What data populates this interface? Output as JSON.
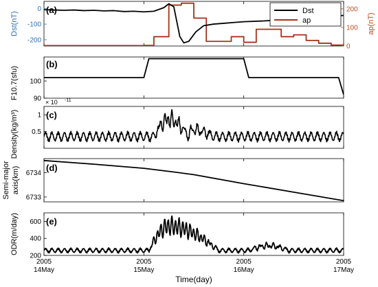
{
  "chart_data": [
    {
      "id": "a",
      "type": "line",
      "panel_label": "(a)",
      "xlim": [
        0,
        3
      ],
      "left_axis": {
        "label": "Dst(nT)",
        "color": "#2f6fb3",
        "ylim": [
          -240,
          45
        ],
        "ticks": [
          0,
          -100,
          -200
        ],
        "tick_labels": [
          "0",
          "-100",
          "-200"
        ]
      },
      "right_axis": {
        "label": "ap(nT)",
        "color": "#c04a1f",
        "ylim": [
          0,
          240
        ],
        "ticks": [
          0,
          100,
          200
        ],
        "tick_labels": [
          "0",
          "100",
          "200"
        ]
      },
      "legend": {
        "position": "top-right",
        "entries": [
          {
            "label": "Dst",
            "color": "#000000"
          },
          {
            "label": "ap",
            "color": "#a3321a"
          }
        ]
      },
      "series": [
        {
          "name": "Dst",
          "axis": "left",
          "color": "#000000",
          "x": [
            0,
            0.1,
            0.2,
            0.3,
            0.4,
            0.5,
            0.6,
            0.7,
            0.8,
            0.9,
            1.0,
            1.1,
            1.2,
            1.25,
            1.3,
            1.36,
            1.4,
            1.45,
            1.52,
            1.6,
            1.7,
            1.8,
            1.9,
            2.0,
            2.2,
            2.4,
            2.6,
            2.8,
            3.0
          ],
          "y": [
            -8,
            -10,
            -12,
            -10,
            -14,
            -12,
            -16,
            -14,
            -20,
            -18,
            -22,
            -18,
            5,
            30,
            10,
            -180,
            -220,
            -210,
            -150,
            -110,
            -100,
            -95,
            -90,
            -85,
            -80,
            -72,
            -62,
            -52,
            -45
          ]
        },
        {
          "name": "ap",
          "axis": "right",
          "color": "#a3321a",
          "step": true,
          "x": [
            0,
            1.0,
            1.1,
            1.125,
            1.25,
            1.375,
            1.5,
            1.625,
            1.75,
            1.875,
            2.0,
            2.125,
            2.25,
            2.375,
            2.5,
            2.625,
            2.75,
            2.875,
            3.0
          ],
          "y": [
            2,
            3,
            50,
            50,
            220,
            230,
            150,
            25,
            25,
            50,
            20,
            90,
            90,
            50,
            60,
            30,
            15,
            5,
            5
          ]
        }
      ]
    },
    {
      "id": "b",
      "type": "line",
      "panel_label": "(b)",
      "ylabel": "F10.7(sfu)",
      "xlim": [
        0,
        3
      ],
      "ylim": [
        90,
        114
      ],
      "ticks": [
        100,
        90
      ],
      "tick_labels": [
        "100",
        "90"
      ],
      "series": [
        {
          "color": "#000000",
          "x": [
            0,
            0.95,
            1.0,
            1.05,
            1.95,
            2.0,
            2.05,
            2.95,
            3.0
          ],
          "y": [
            102,
            102,
            102,
            113,
            113,
            113,
            102,
            102,
            92
          ]
        }
      ]
    },
    {
      "id": "c",
      "type": "line",
      "panel_label": "(c)",
      "ylabel": "Density(kg/m³)",
      "exponent": "× 10",
      "exponent_power": "-11",
      "xlim": [
        0,
        3
      ],
      "ylim": [
        0,
        1.25
      ],
      "ticks": [
        1,
        0.5
      ],
      "tick_labels": [
        "1",
        "0.5"
      ],
      "base": {
        "baseline": 0.35,
        "amplitude": 0.12,
        "period": 0.0633
      },
      "events": [
        {
          "x_start": 1.1,
          "x_end": 1.45,
          "peak_x": 1.25,
          "peak": 1.15
        },
        {
          "x_start": 1.45,
          "x_end": 1.7,
          "peak_x": 1.48,
          "peak": 0.75
        }
      ]
    },
    {
      "id": "d",
      "type": "line",
      "panel_label": "(d)",
      "ylabel_lines": [
        "Semi-major",
        "axis(km)"
      ],
      "xlim": [
        0,
        3
      ],
      "ylim": [
        6732.8,
        6734.58
      ],
      "ticks": [
        6734,
        6733
      ],
      "tick_labels": [
        "6734",
        "6733"
      ],
      "series": [
        {
          "color": "#000000",
          "x": [
            0,
            0.5,
            1.0,
            1.3,
            1.5,
            2.0,
            2.5,
            3.0
          ],
          "y": [
            6734.5,
            6734.35,
            6734.18,
            6734.03,
            6733.92,
            6733.55,
            6733.2,
            6732.85
          ]
        }
      ]
    },
    {
      "id": "e",
      "type": "line",
      "panel_label": "(e)",
      "ylabel": "ODR(m/day)",
      "xlim": [
        0,
        3
      ],
      "ylim": [
        200,
        700
      ],
      "ticks": [
        600,
        400,
        200
      ],
      "tick_labels": [
        "600",
        "400",
        "200"
      ],
      "base": {
        "baseline": 258,
        "amplitude": 22,
        "period": 0.0633
      },
      "events": [
        {
          "x_start": 1.05,
          "x_end": 1.75,
          "peak_x": 1.25,
          "peak": 660
        },
        {
          "x_start": 2.05,
          "x_end": 2.45,
          "peak_x": 2.25,
          "peak": 355
        }
      ]
    }
  ],
  "x_axis": {
    "label": "Time(day)",
    "ticks": [
      {
        "x": 0,
        "year": "2005",
        "day": "14May"
      },
      {
        "x": 1,
        "year": "2005",
        "day": "15May"
      },
      {
        "x": 2,
        "year": "2005",
        "day": "16May"
      },
      {
        "x": 3,
        "year": "2005",
        "day": "17May"
      }
    ]
  }
}
